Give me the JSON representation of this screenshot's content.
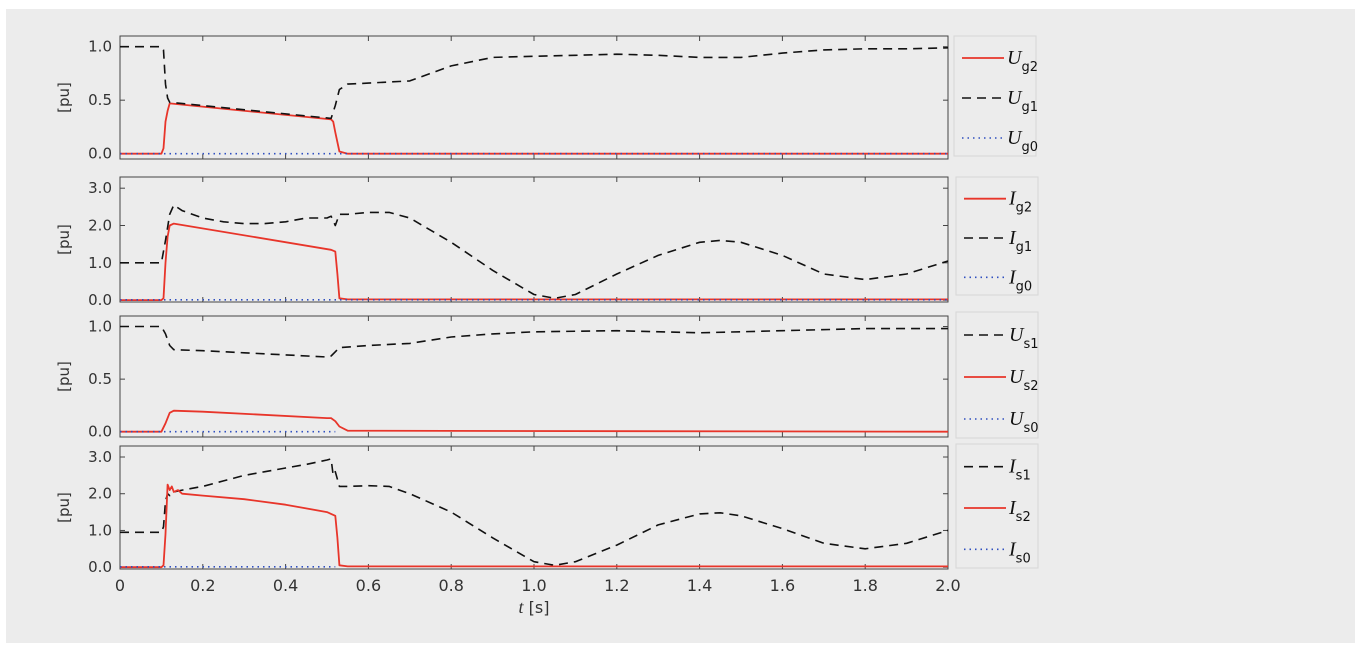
{
  "colors": {
    "panel_bg": "#ececec",
    "axes_bg": "#ececec",
    "axis_line": "#444444",
    "text": "#333333",
    "red": "#e8352a",
    "black": "#111111",
    "blue": "#2f4fbf"
  },
  "x_axis": {
    "label_var": "t",
    "label_unit": " [s]",
    "ticks": [
      "0",
      "0.2",
      "0.4",
      "0.6",
      "0.8",
      "1.0",
      "1.2",
      "1.4",
      "1.6",
      "1.8",
      "2.0"
    ]
  },
  "chart_data": [
    {
      "type": "line",
      "ylabel": "[pu]",
      "xlim": [
        0,
        2.0
      ],
      "ylim": [
        -0.05,
        1.1
      ],
      "yticks": [
        0,
        0.5,
        1.0
      ],
      "ytick_labels": [
        "0.0",
        "0.5",
        "1.0"
      ],
      "legend": [
        {
          "var": "U",
          "sub": "g2",
          "series": 0
        },
        {
          "var": "U",
          "sub": "g1",
          "series": 1
        },
        {
          "var": "U",
          "sub": "g0",
          "series": 2
        }
      ],
      "series": [
        {
          "style": "solid",
          "color": "#e8352a",
          "x": [
            0,
            0.1,
            0.105,
            0.11,
            0.115,
            0.12,
            0.51,
            0.515,
            0.52,
            0.53,
            0.55,
            2.0
          ],
          "y": [
            0,
            0,
            0.05,
            0.3,
            0.4,
            0.47,
            0.32,
            0.3,
            0.2,
            0.02,
            0,
            0
          ]
        },
        {
          "style": "dashed",
          "color": "#111111",
          "x": [
            0,
            0.1,
            0.105,
            0.11,
            0.115,
            0.12,
            0.51,
            0.52,
            0.53,
            0.55,
            0.6,
            0.7,
            0.8,
            0.9,
            1.0,
            1.1,
            1.2,
            1.3,
            1.4,
            1.5,
            1.6,
            1.7,
            1.8,
            1.9,
            2.0
          ],
          "y": [
            1.0,
            1.0,
            0.97,
            0.65,
            0.52,
            0.48,
            0.33,
            0.45,
            0.6,
            0.65,
            0.66,
            0.68,
            0.82,
            0.9,
            0.91,
            0.92,
            0.93,
            0.92,
            0.9,
            0.9,
            0.94,
            0.97,
            0.98,
            0.98,
            0.99
          ]
        },
        {
          "style": "dotted",
          "color": "#2f4fbf",
          "x": [
            0,
            2.0
          ],
          "y": [
            0,
            0
          ]
        }
      ]
    },
    {
      "type": "line",
      "ylabel": "[pu]",
      "xlim": [
        0,
        2.0
      ],
      "ylim": [
        -0.05,
        3.3
      ],
      "yticks": [
        0,
        1.0,
        2.0,
        3.0
      ],
      "ytick_labels": [
        "0.0",
        "1.0",
        "2.0",
        "3.0"
      ],
      "legend": [
        {
          "var": "I",
          "sub": "g2",
          "series": 0
        },
        {
          "var": "I",
          "sub": "g1",
          "series": 1
        },
        {
          "var": "I",
          "sub": "g0",
          "series": 2
        }
      ],
      "series": [
        {
          "style": "solid",
          "color": "#e8352a",
          "x": [
            0,
            0.1,
            0.105,
            0.11,
            0.115,
            0.12,
            0.13,
            0.51,
            0.52,
            0.525,
            0.53,
            0.55,
            2.0
          ],
          "y": [
            0,
            0,
            0.05,
            1.0,
            1.7,
            2.0,
            2.05,
            1.35,
            1.3,
            0.7,
            0.05,
            0.02,
            0.02
          ]
        },
        {
          "style": "dashed",
          "color": "#111111",
          "x": [
            0,
            0.1,
            0.11,
            0.12,
            0.13,
            0.15,
            0.2,
            0.25,
            0.3,
            0.35,
            0.4,
            0.45,
            0.5,
            0.51,
            0.52,
            0.53,
            0.55,
            0.6,
            0.65,
            0.7,
            0.8,
            0.9,
            1.0,
            1.05,
            1.1,
            1.2,
            1.3,
            1.4,
            1.45,
            1.5,
            1.6,
            1.7,
            1.8,
            1.9,
            2.0
          ],
          "y": [
            1.0,
            1.0,
            1.6,
            2.3,
            2.55,
            2.4,
            2.2,
            2.1,
            2.05,
            2.05,
            2.1,
            2.2,
            2.2,
            2.25,
            2.0,
            2.3,
            2.3,
            2.35,
            2.35,
            2.2,
            1.55,
            0.8,
            0.15,
            0.05,
            0.15,
            0.7,
            1.2,
            1.55,
            1.6,
            1.55,
            1.2,
            0.7,
            0.55,
            0.7,
            1.05
          ]
        },
        {
          "style": "dotted",
          "color": "#2f4fbf",
          "x": [
            0,
            2.0
          ],
          "y": [
            0.01,
            0.01
          ]
        }
      ]
    },
    {
      "type": "line",
      "ylabel": "[pu]",
      "xlim": [
        0,
        2.0
      ],
      "ylim": [
        -0.05,
        1.1
      ],
      "yticks": [
        0,
        0.5,
        1.0
      ],
      "ytick_labels": [
        "0.0",
        "0.5",
        "1.0"
      ],
      "legend": [
        {
          "var": "U",
          "sub": "s1",
          "series": 0
        },
        {
          "var": "U",
          "sub": "s2",
          "series": 1
        },
        {
          "var": "U",
          "sub": "s0",
          "series": 2
        }
      ],
      "series": [
        {
          "style": "dashed",
          "color": "#111111",
          "x": [
            0,
            0.1,
            0.11,
            0.12,
            0.13,
            0.2,
            0.3,
            0.4,
            0.5,
            0.51,
            0.52,
            0.53,
            0.6,
            0.7,
            0.8,
            0.9,
            1.0,
            1.2,
            1.4,
            1.6,
            1.8,
            2.0
          ],
          "y": [
            1.0,
            1.0,
            0.93,
            0.82,
            0.78,
            0.77,
            0.75,
            0.73,
            0.71,
            0.72,
            0.76,
            0.8,
            0.82,
            0.84,
            0.9,
            0.93,
            0.95,
            0.96,
            0.94,
            0.96,
            0.98,
            0.98
          ]
        },
        {
          "style": "solid",
          "color": "#e8352a",
          "x": [
            0,
            0.1,
            0.11,
            0.12,
            0.13,
            0.2,
            0.5,
            0.51,
            0.52,
            0.53,
            0.55,
            2.0
          ],
          "y": [
            0,
            0,
            0.08,
            0.18,
            0.2,
            0.19,
            0.13,
            0.13,
            0.1,
            0.05,
            0.01,
            0
          ]
        },
        {
          "style": "dotted",
          "color": "#2f4fbf",
          "x": [
            0,
            0.52
          ],
          "y": [
            0,
            0
          ]
        }
      ]
    },
    {
      "type": "line",
      "ylabel": "[pu]",
      "xlim": [
        0,
        2.0
      ],
      "ylim": [
        -0.05,
        3.3
      ],
      "yticks": [
        0,
        1.0,
        2.0,
        3.0
      ],
      "ytick_labels": [
        "0.0",
        "1.0",
        "2.0",
        "3.0"
      ],
      "legend": [
        {
          "var": "I",
          "sub": "s1",
          "series": 0
        },
        {
          "var": "I",
          "sub": "s2",
          "series": 1
        },
        {
          "var": "I",
          "sub": "s0",
          "series": 2
        }
      ],
      "series": [
        {
          "style": "dashed",
          "color": "#111111",
          "x": [
            0,
            0.1,
            0.105,
            0.11,
            0.115,
            0.12,
            0.13,
            0.15,
            0.2,
            0.25,
            0.3,
            0.35,
            0.4,
            0.45,
            0.5,
            0.51,
            0.515,
            0.52,
            0.53,
            0.55,
            0.6,
            0.65,
            0.7,
            0.8,
            0.9,
            1.0,
            1.05,
            1.1,
            1.2,
            1.3,
            1.4,
            1.45,
            1.5,
            1.6,
            1.7,
            1.8,
            1.9,
            2.0
          ],
          "y": [
            0.95,
            0.95,
            1.1,
            1.8,
            2.0,
            1.95,
            2.05,
            2.1,
            2.2,
            2.35,
            2.5,
            2.6,
            2.7,
            2.8,
            2.92,
            2.95,
            2.5,
            2.6,
            2.2,
            2.2,
            2.22,
            2.2,
            2.0,
            1.5,
            0.8,
            0.15,
            0.05,
            0.15,
            0.6,
            1.15,
            1.45,
            1.48,
            1.4,
            1.05,
            0.65,
            0.5,
            0.65,
            1.0
          ]
        },
        {
          "style": "solid",
          "color": "#e8352a",
          "x": [
            0,
            0.1,
            0.105,
            0.11,
            0.115,
            0.12,
            0.125,
            0.13,
            0.14,
            0.15,
            0.2,
            0.3,
            0.4,
            0.5,
            0.51,
            0.52,
            0.525,
            0.53,
            0.55,
            2.0
          ],
          "y": [
            0,
            0,
            0.05,
            0.9,
            2.25,
            2.1,
            2.2,
            2.05,
            2.1,
            2.0,
            1.95,
            1.85,
            1.7,
            1.5,
            1.45,
            1.4,
            0.8,
            0.05,
            0.02,
            0.02
          ]
        },
        {
          "style": "dotted",
          "color": "#2f4fbf",
          "x": [
            0,
            0.52
          ],
          "y": [
            0.01,
            0.01
          ]
        }
      ]
    }
  ]
}
